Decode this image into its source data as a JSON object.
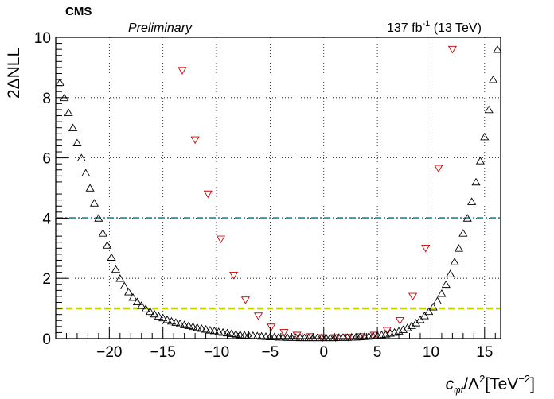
{
  "header": {
    "experiment": "CMS",
    "status": "Preliminary",
    "lumi": "137 fb",
    "lumi_exp": "-1",
    "energy": " (13 TeV)"
  },
  "chart_data": {
    "type": "scatter",
    "title": "",
    "ylabel": "2ΔNLL",
    "xlabel": {
      "c": "c",
      "sub": "φt",
      "mid": "/Λ",
      "sup2": "2",
      "unit": "[TeV",
      "supm2": "−2",
      "close": "]"
    },
    "xlim": [
      -25,
      16.5
    ],
    "ylim": [
      0,
      10
    ],
    "xticks": [
      -20,
      -15,
      -10,
      -5,
      0,
      5,
      10,
      15
    ],
    "xtick_labels": [
      "−20",
      "−15",
      "−10",
      "−5",
      "0",
      "5",
      "10",
      "15"
    ],
    "yticks": [
      0,
      2,
      4,
      6,
      8,
      10
    ],
    "ytick_labels": [
      "0",
      "2",
      "4",
      "6",
      "8",
      "10"
    ],
    "grid": true,
    "reference_lines": [
      {
        "y": 4,
        "color": "#2f9fa5",
        "style": "dash-dot"
      },
      {
        "y": 1,
        "color": "#c8d400",
        "style": "dashed"
      }
    ],
    "series": [
      {
        "marker": "triangle-down",
        "color": "#cc0000",
        "x": [
          -13.2,
          -12.0,
          -10.8,
          -9.6,
          -8.4,
          -7.3,
          -6.1,
          -4.9,
          -3.7,
          -2.5,
          -1.3,
          -0.1,
          1.1,
          2.3,
          3.5,
          4.7,
          5.9,
          7.1,
          8.3,
          9.5,
          10.7,
          12.0
        ],
        "y": [
          8.9,
          6.6,
          4.8,
          3.3,
          2.1,
          1.28,
          0.75,
          0.38,
          0.2,
          0.11,
          0.06,
          0.03,
          0.03,
          0.04,
          0.06,
          0.11,
          0.27,
          0.6,
          1.4,
          3.0,
          5.65,
          9.6
        ]
      },
      {
        "marker": "triangle-up",
        "color": "#000000",
        "x": [
          -24.6,
          -24.2,
          -23.8,
          -23.4,
          -23.0,
          -22.6,
          -22.2,
          -21.8,
          -21.4,
          -21.0,
          -20.6,
          -20.2,
          -19.8,
          -19.4,
          -19.0,
          -18.6,
          -18.2,
          -17.8,
          -17.4,
          -17.0,
          -16.6,
          -16.2,
          -15.8,
          -15.4,
          -15.0,
          -14.6,
          -14.2,
          -13.8,
          -13.4,
          -13.0,
          -12.6,
          -12.2,
          -11.8,
          -11.4,
          -11.0,
          -10.6,
          -10.2,
          -9.8,
          -9.4,
          -9.0,
          -8.6,
          -8.2,
          -7.8,
          -7.4,
          -7.0,
          -6.6,
          -6.2,
          -5.8,
          -5.4,
          -5.0,
          -4.6,
          -4.2,
          -3.8,
          -3.4,
          -3.0,
          -2.6,
          -2.2,
          -1.8,
          -1.4,
          -1.0,
          -0.6,
          -0.2,
          0.2,
          0.6,
          1.0,
          1.4,
          1.8,
          2.2,
          2.6,
          3.0,
          3.4,
          3.8,
          4.2,
          4.6,
          5.0,
          5.4,
          5.8,
          6.2,
          6.6,
          7.0,
          7.4,
          7.8,
          8.2,
          8.6,
          9.0,
          9.4,
          9.8,
          10.2,
          10.6,
          11.0,
          11.4,
          11.8,
          12.2,
          12.6,
          13.0,
          13.4,
          13.8,
          14.2,
          14.6,
          15.0,
          15.4,
          15.8,
          16.2
        ],
        "y": [
          8.5,
          8.0,
          7.5,
          7.0,
          6.5,
          6.0,
          5.5,
          5.0,
          4.5,
          4.0,
          3.5,
          3.1,
          2.7,
          2.3,
          2.0,
          1.75,
          1.55,
          1.37,
          1.22,
          1.1,
          0.99,
          0.9,
          0.82,
          0.75,
          0.69,
          0.63,
          0.58,
          0.54,
          0.5,
          0.46,
          0.43,
          0.4,
          0.37,
          0.34,
          0.31,
          0.28,
          0.26,
          0.23,
          0.21,
          0.19,
          0.17,
          0.15,
          0.13,
          0.12,
          0.11,
          0.1,
          0.09,
          0.08,
          0.07,
          0.06,
          0.06,
          0.05,
          0.05,
          0.04,
          0.04,
          0.04,
          0.03,
          0.03,
          0.03,
          0.03,
          0.03,
          0.03,
          0.03,
          0.03,
          0.03,
          0.04,
          0.04,
          0.04,
          0.05,
          0.05,
          0.06,
          0.07,
          0.08,
          0.09,
          0.11,
          0.13,
          0.15,
          0.18,
          0.21,
          0.25,
          0.3,
          0.36,
          0.43,
          0.52,
          0.63,
          0.76,
          0.9,
          1.05,
          1.25,
          1.5,
          1.8,
          2.15,
          2.55,
          3.0,
          3.5,
          4.0,
          4.55,
          5.2,
          5.9,
          6.7,
          7.6,
          8.6,
          9.6
        ]
      }
    ]
  }
}
